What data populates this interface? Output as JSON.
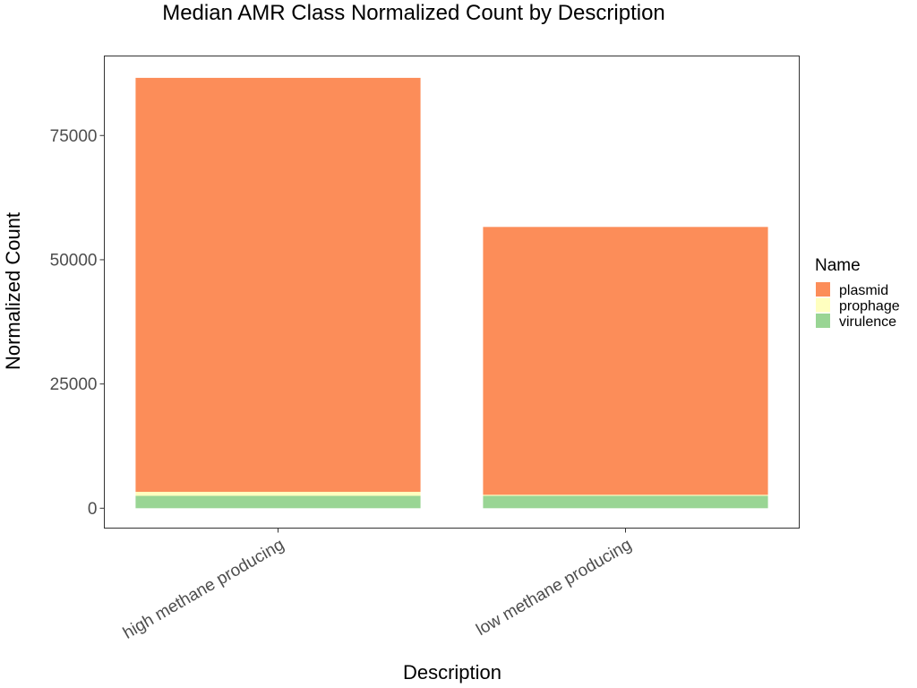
{
  "chart_data": {
    "type": "bar",
    "stacked": true,
    "title": "Median AMR Class Normalized Count by Description",
    "xlabel": "Description",
    "ylabel": "Normalized Count",
    "categories": [
      "high methane producing",
      "low methane producing"
    ],
    "ylim": [
      -4000,
      91000
    ],
    "yticks": [
      0,
      25000,
      50000,
      75000
    ],
    "grid": false,
    "legend": {
      "title": "Name",
      "position": "right"
    },
    "series": [
      {
        "name": "plasmid",
        "color": "#FC8D59",
        "values": [
          83300,
          53900
        ]
      },
      {
        "name": "prophage",
        "color": "#FFFFBF",
        "values": [
          800,
          200
        ]
      },
      {
        "name": "virulence",
        "color": "#99D594",
        "values": [
          2500,
          2500
        ]
      }
    ],
    "stack_order": [
      "virulence",
      "prophage",
      "plasmid"
    ]
  }
}
